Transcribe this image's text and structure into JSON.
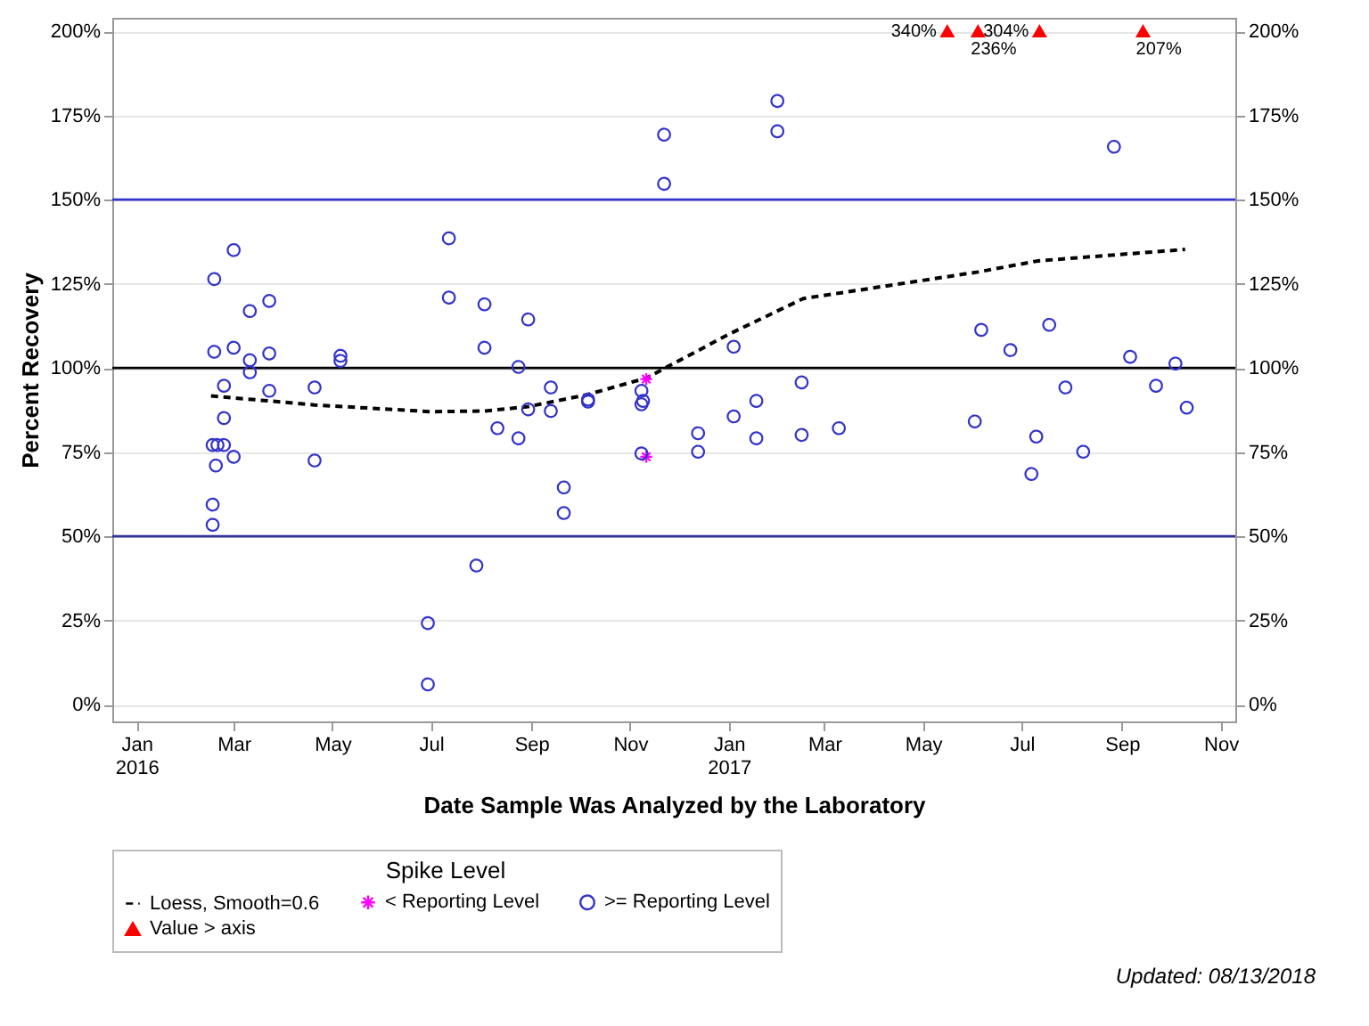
{
  "chart_data": {
    "type": "scatter",
    "xlabel": "Date Sample Was Analyzed by the Laboratory",
    "ylabel": "Percent Recovery",
    "legend_title": "Spike Level",
    "legend": "bottom",
    "grid": "y",
    "xlim": [
      "2015-12-17",
      "2017-11-10"
    ],
    "xticks": [
      {
        "value": "2016-01",
        "label": "Jan 2016"
      },
      {
        "value": "2016-03",
        "label": "Mar"
      },
      {
        "value": "2016-05",
        "label": "May"
      },
      {
        "value": "2016-07",
        "label": "Jul"
      },
      {
        "value": "2016-09",
        "label": "Sep"
      },
      {
        "value": "2016-11",
        "label": "Nov"
      },
      {
        "value": "2017-01",
        "label": "Jan 2017"
      },
      {
        "value": "2017-03",
        "label": "Mar"
      },
      {
        "value": "2017-05",
        "label": "May"
      },
      {
        "value": "2017-07",
        "label": "Jul"
      },
      {
        "value": "2017-09",
        "label": "Sep"
      },
      {
        "value": "2017-11",
        "label": "Nov"
      }
    ],
    "ylim": [
      -5,
      204
    ],
    "yticks": [
      {
        "value": 0,
        "label": "0%"
      },
      {
        "value": 25,
        "label": "25%"
      },
      {
        "value": 50,
        "label": "50%"
      },
      {
        "value": 75,
        "label": "75%"
      },
      {
        "value": 100,
        "label": "100%"
      },
      {
        "value": 125,
        "label": "125%"
      },
      {
        "value": 150,
        "label": "150%"
      },
      {
        "value": 175,
        "label": "175%"
      },
      {
        "value": 200,
        "label": "200%"
      }
    ],
    "y2lim": [
      -5,
      204
    ],
    "y2ticks": [
      {
        "value": 0,
        "label": "0%"
      },
      {
        "value": 25,
        "label": "25%"
      },
      {
        "value": 50,
        "label": "50%"
      },
      {
        "value": 75,
        "label": "75%"
      },
      {
        "value": 100,
        "label": "100%"
      },
      {
        "value": 125,
        "label": "125%"
      },
      {
        "value": 150,
        "label": "150%"
      },
      {
        "value": 175,
        "label": "175%"
      },
      {
        "value": 200,
        "label": "200%"
      }
    ],
    "ref_lines": [
      {
        "axis": "y",
        "value": 150,
        "color": "#3333cc",
        "line_style": "solid"
      },
      {
        "axis": "y",
        "value": 100,
        "color": "#000000",
        "line_style": "solid"
      },
      {
        "axis": "y",
        "value": 50,
        "color": "#333399",
        "line_style": "solid"
      }
    ],
    "series": [
      {
        "name": "Loess, Smooth=0.6",
        "type": "line",
        "color": "#000000",
        "line_style": "dashed",
        "marker": "none",
        "x": [
          "2016-02-16",
          "2016-04-20",
          "2016-07-01",
          "2016-08-03",
          "2016-08-30",
          "2016-10-05",
          "2016-11-11",
          "2017-01-01",
          "2017-02-16",
          "2017-06-04",
          "2017-07-11",
          "2017-10-10"
        ],
        "values": [
          91.7,
          89,
          87,
          87.2,
          88.5,
          92,
          97,
          110,
          120.6,
          128.5,
          131.8,
          135.2
        ]
      },
      {
        "name": "< Reporting Level",
        "type": "scatter",
        "color": "#ff00ff",
        "marker": "cross",
        "x": [
          "2016-11-11",
          "2016-11-11"
        ],
        "values": [
          96.7,
          73.6
        ]
      },
      {
        "name": ">= Reporting Level",
        "type": "scatter",
        "color": "#3333cc",
        "marker": "circle",
        "x": [
          "2016-02-18",
          "2016-02-18",
          "2016-03-01",
          "2016-03-01",
          "2016-03-11",
          "2016-03-11",
          "2016-03-11",
          "2016-03-23",
          "2016-03-23",
          "2016-03-23",
          "2016-02-24",
          "2016-02-24",
          "2016-02-24",
          "2016-02-17",
          "2016-02-17",
          "2016-02-17",
          "2016-02-20",
          "2016-02-19",
          "2016-03-01",
          "2016-04-20",
          "2016-04-20",
          "2016-05-06",
          "2016-05-06",
          "2016-07-12",
          "2016-07-12",
          "2016-08-03",
          "2016-08-03",
          "2016-07-29",
          "2016-06-29",
          "2016-06-29",
          "2016-08-11",
          "2016-08-24",
          "2016-08-24",
          "2016-08-30",
          "2016-08-30",
          "2016-09-13",
          "2016-09-13",
          "2016-09-21",
          "2016-09-21",
          "2016-10-06",
          "2016-10-06",
          "2016-11-08",
          "2016-11-08",
          "2016-11-08",
          "2016-11-09",
          "2016-11-22",
          "2016-11-22",
          "2016-12-13",
          "2016-12-13",
          "2017-01-04",
          "2017-01-04",
          "2017-01-18",
          "2017-01-18",
          "2017-01-31",
          "2017-01-31",
          "2017-02-15",
          "2017-02-15",
          "2017-03-10",
          "2017-06-02",
          "2017-06-06",
          "2017-06-24",
          "2017-07-07",
          "2017-07-10",
          "2017-07-18",
          "2017-07-28",
          "2017-08-08",
          "2017-08-27",
          "2017-09-06",
          "2017-09-22",
          "2017-10-04",
          "2017-10-11"
        ],
        "values": [
          104.8,
          126.4,
          106,
          135,
          102.3,
          98.7,
          116.9,
          104.3,
          93.2,
          119.9,
          94.7,
          85.1,
          77.1,
          77.1,
          59.4,
          53.4,
          77.1,
          71,
          73.6,
          94.2,
          72.5,
          103.6,
          102.1,
          138.5,
          120.9,
          106,
          118.9,
          41.3,
          24.2,
          6,
          82.1,
          100.3,
          79.1,
          114.4,
          87.7,
          94.2,
          87.2,
          64.5,
          56.9,
          90.6,
          90,
          93.2,
          89.2,
          74.6,
          90.2,
          169.3,
          154.7,
          80.6,
          75.1,
          106.3,
          85.6,
          90.2,
          79.1,
          179.3,
          170.3,
          95.7,
          80.1,
          82.1,
          84.1,
          111.3,
          105.3,
          68.5,
          79.6,
          112.8,
          94.2,
          75.1,
          165.7,
          103.3,
          94.7,
          101.3,
          88.2
        ]
      },
      {
        "name": "Value > axis",
        "type": "scatter",
        "color": "#ff0000",
        "marker": "triangle",
        "x": [
          "2017-05-16",
          "2017-06-04",
          "2017-07-12",
          "2017-09-14"
        ],
        "values": [
          200,
          200,
          200,
          200
        ]
      }
    ],
    "annotations": [
      {
        "text": "340%",
        "x": "2017-05-16",
        "y": 200
      },
      {
        "text": "236%",
        "x": "2017-06-04",
        "y": 200
      },
      {
        "text": "304%",
        "x": "2017-07-12",
        "y": 200
      },
      {
        "text": "207%",
        "x": "2017-09-14",
        "y": 200
      },
      "Updated: 08/13/2018"
    ]
  }
}
